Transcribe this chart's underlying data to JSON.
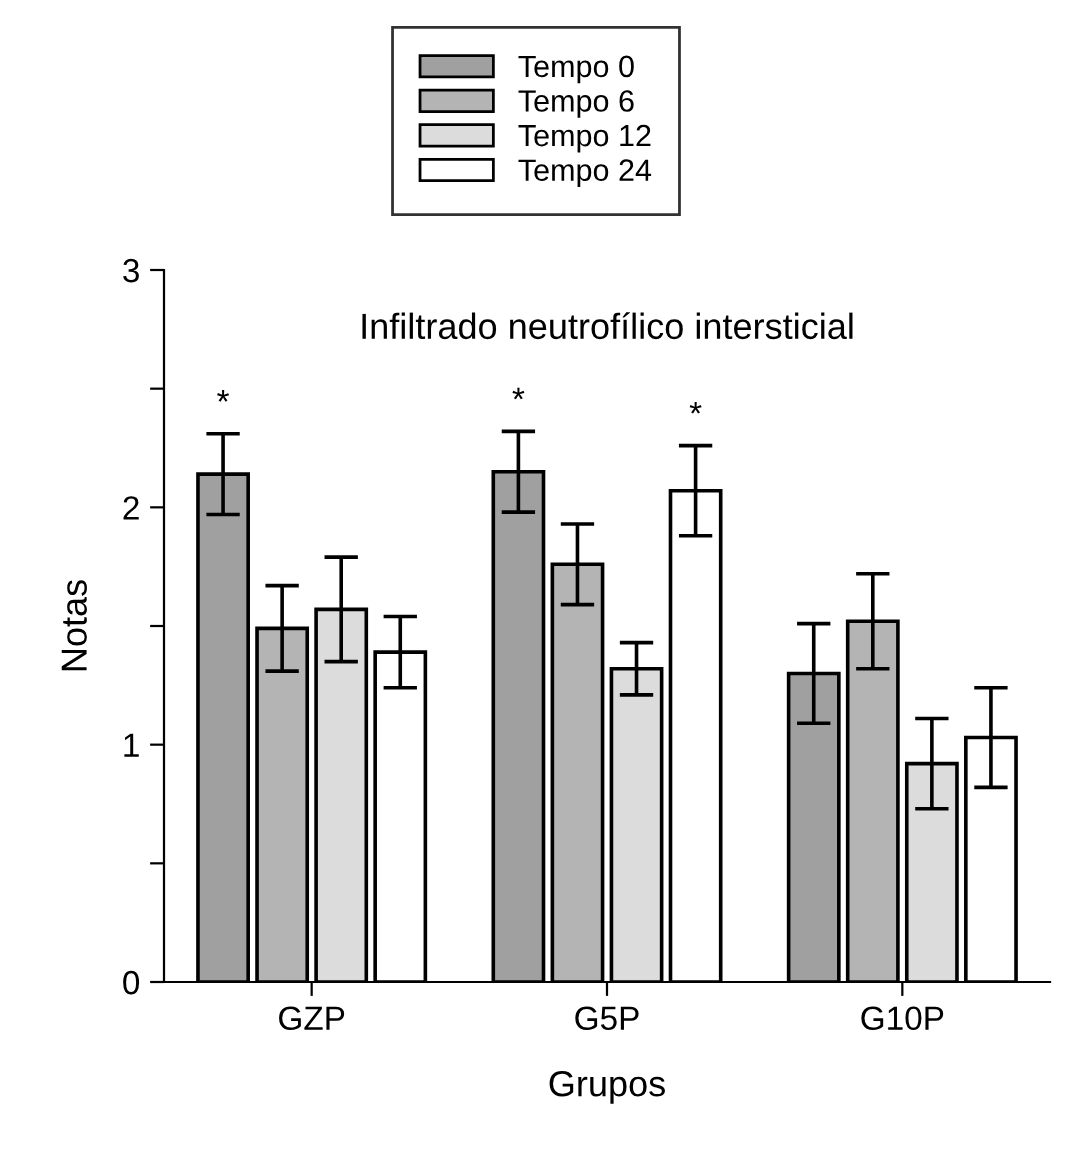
{
  "chart_data": {
    "type": "bar",
    "title": "Infiltrado neutrofílico intersticial",
    "xlabel": "Grupos",
    "ylabel": "Notas",
    "categories": [
      "GZP",
      "G5P",
      "G10P"
    ],
    "series": [
      {
        "name": "Tempo 0",
        "color": "#a0a0a0",
        "values": [
          2.14,
          2.15,
          1.3
        ],
        "errors": [
          0.17,
          0.17,
          0.21
        ],
        "value_labels": [
          "*",
          "*",
          null
        ]
      },
      {
        "name": "Tempo 6",
        "color": "#b4b4b4",
        "values": [
          1.49,
          1.76,
          1.52
        ],
        "errors": [
          0.18,
          0.17,
          0.2
        ]
      },
      {
        "name": "Tempo 12",
        "color": "#dcdcdc",
        "values": [
          1.57,
          1.32,
          0.92
        ],
        "errors": [
          0.22,
          0.11,
          0.19
        ]
      },
      {
        "name": "Tempo 24",
        "color": "#ffffff",
        "values": [
          1.39,
          2.07,
          1.03
        ],
        "errors": [
          0.15,
          0.19,
          0.21
        ],
        "value_labels": [
          null,
          "*",
          null
        ]
      }
    ],
    "ylim": [
      0,
      3
    ],
    "yticks": [
      0,
      {
        "value": 0.5,
        "label": null
      },
      1,
      {
        "value": 1.5,
        "label": null
      },
      2,
      {
        "value": 2.5,
        "label": null
      },
      3
    ],
    "legend": "top",
    "grid": false
  }
}
